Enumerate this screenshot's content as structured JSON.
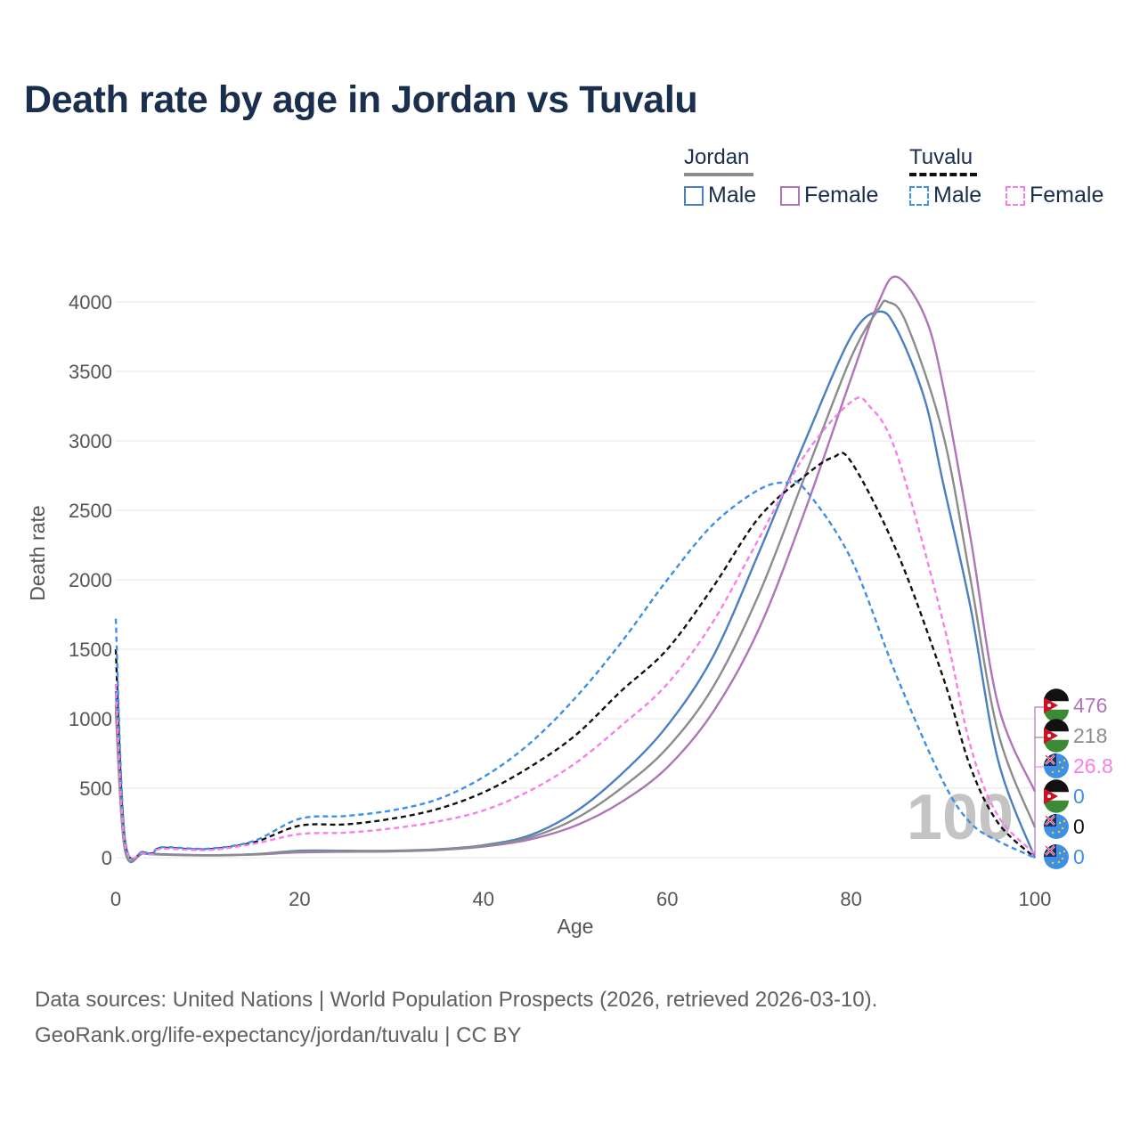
{
  "title": "Death rate by age in Jordan vs Tuvalu",
  "legend": {
    "groups": [
      {
        "name": "Jordan",
        "color": "#8c8c8c",
        "dash": false
      },
      {
        "name": "Tuvalu",
        "color": "#111111",
        "dash": true
      }
    ],
    "items": [
      {
        "label": "Male",
        "color": "#4a7fc1",
        "dash": false
      },
      {
        "label": "Female",
        "color": "#b074b8",
        "dash": false
      },
      {
        "label": "Male",
        "color": "#3d8fe8",
        "dash": true
      },
      {
        "label": "Female",
        "color": "#f77fe8",
        "dash": true
      }
    ]
  },
  "watermark": "100",
  "end_labels": [
    {
      "value": "476",
      "color": "#b074b8",
      "flag": "jordan-flag"
    },
    {
      "value": "218",
      "color": "#8c8c8c",
      "flag": "jordan-flag"
    },
    {
      "value": "26.8",
      "color": "#f77fe8",
      "flag": "tuvalu-flag"
    },
    {
      "value": "0",
      "color": "#3d8fe8",
      "flag": "jordan-flag"
    },
    {
      "value": "0",
      "color": "#111111",
      "flag": "tuvalu-flag"
    },
    {
      "value": "0",
      "color": "#3d8fe8",
      "flag": "tuvalu-flag"
    }
  ],
  "footer": {
    "line1": "Data sources: United Nations | World Population Prospects (2026, retrieved 2026-03-10).",
    "line2": "GeoRank.org/life-expectancy/jordan/tuvalu | CC BY"
  },
  "chart_data": {
    "type": "line",
    "title": "Death rate by age in Jordan vs Tuvalu",
    "xlabel": "Age",
    "ylabel": "Death rate",
    "xlim": [
      0,
      100
    ],
    "ylim": [
      0,
      4200
    ],
    "xticks": [
      0,
      20,
      40,
      60,
      80,
      100
    ],
    "yticks": [
      0,
      500,
      1000,
      1500,
      2000,
      2500,
      3000,
      3500,
      4000
    ],
    "grid": true,
    "series": [
      {
        "name": "Jordan Male",
        "color": "#4a7fc1",
        "dash": false,
        "points": [
          [
            0,
            1200
          ],
          [
            1,
            60
          ],
          [
            3,
            35
          ],
          [
            5,
            25
          ],
          [
            10,
            18
          ],
          [
            15,
            25
          ],
          [
            20,
            50
          ],
          [
            25,
            50
          ],
          [
            30,
            50
          ],
          [
            35,
            60
          ],
          [
            40,
            90
          ],
          [
            45,
            160
          ],
          [
            50,
            330
          ],
          [
            55,
            600
          ],
          [
            60,
            950
          ],
          [
            65,
            1450
          ],
          [
            70,
            2200
          ],
          [
            75,
            3000
          ],
          [
            80,
            3750
          ],
          [
            83,
            3930
          ],
          [
            85,
            3800
          ],
          [
            88,
            3300
          ],
          [
            90,
            2700
          ],
          [
            93,
            1800
          ],
          [
            96,
            700
          ],
          [
            100,
            0
          ]
        ]
      },
      {
        "name": "Jordan Female",
        "color": "#b074b8",
        "dash": false,
        "points": [
          [
            0,
            1050
          ],
          [
            1,
            55
          ],
          [
            3,
            30
          ],
          [
            5,
            22
          ],
          [
            10,
            16
          ],
          [
            15,
            22
          ],
          [
            20,
            38
          ],
          [
            25,
            42
          ],
          [
            30,
            45
          ],
          [
            35,
            55
          ],
          [
            40,
            80
          ],
          [
            45,
            130
          ],
          [
            50,
            230
          ],
          [
            55,
            400
          ],
          [
            60,
            650
          ],
          [
            65,
            1050
          ],
          [
            70,
            1650
          ],
          [
            75,
            2500
          ],
          [
            80,
            3450
          ],
          [
            83,
            4000
          ],
          [
            85,
            4180
          ],
          [
            88,
            3900
          ],
          [
            90,
            3400
          ],
          [
            93,
            2300
          ],
          [
            96,
            1100
          ],
          [
            100,
            476
          ]
        ]
      },
      {
        "name": "Jordan Total",
        "color": "#8c8c8c",
        "dash": false,
        "points": [
          [
            0,
            1100
          ],
          [
            1,
            58
          ],
          [
            3,
            32
          ],
          [
            5,
            23
          ],
          [
            10,
            17
          ],
          [
            15,
            24
          ],
          [
            20,
            44
          ],
          [
            25,
            46
          ],
          [
            30,
            48
          ],
          [
            35,
            57
          ],
          [
            40,
            85
          ],
          [
            45,
            145
          ],
          [
            50,
            280
          ],
          [
            55,
            500
          ],
          [
            60,
            790
          ],
          [
            65,
            1230
          ],
          [
            70,
            1900
          ],
          [
            75,
            2750
          ],
          [
            80,
            3600
          ],
          [
            83,
            3950
          ],
          [
            84,
            4000
          ],
          [
            86,
            3850
          ],
          [
            90,
            3050
          ],
          [
            93,
            2000
          ],
          [
            96,
            900
          ],
          [
            100,
            218
          ]
        ]
      },
      {
        "name": "Tuvalu Total",
        "color": "#111111",
        "dash": true,
        "points": [
          [
            0,
            1500
          ],
          [
            1,
            120
          ],
          [
            3,
            40
          ],
          [
            4,
            30
          ],
          [
            5,
            70
          ],
          [
            10,
            60
          ],
          [
            15,
            110
          ],
          [
            20,
            230
          ],
          [
            25,
            240
          ],
          [
            30,
            280
          ],
          [
            35,
            350
          ],
          [
            40,
            470
          ],
          [
            45,
            650
          ],
          [
            50,
            880
          ],
          [
            55,
            1200
          ],
          [
            60,
            1500
          ],
          [
            65,
            1950
          ],
          [
            70,
            2450
          ],
          [
            75,
            2750
          ],
          [
            78,
            2880
          ],
          [
            80,
            2850
          ],
          [
            85,
            2200
          ],
          [
            90,
            1300
          ],
          [
            93,
            650
          ],
          [
            96,
            250
          ],
          [
            100,
            0
          ]
        ]
      },
      {
        "name": "Tuvalu Male",
        "color": "#3d8fe8",
        "dash": true,
        "points": [
          [
            0,
            1720
          ],
          [
            1,
            140
          ],
          [
            3,
            45
          ],
          [
            4,
            30
          ],
          [
            5,
            75
          ],
          [
            10,
            65
          ],
          [
            15,
            120
          ],
          [
            20,
            280
          ],
          [
            25,
            300
          ],
          [
            30,
            340
          ],
          [
            35,
            420
          ],
          [
            40,
            580
          ],
          [
            45,
            820
          ],
          [
            50,
            1150
          ],
          [
            55,
            1550
          ],
          [
            60,
            2000
          ],
          [
            65,
            2400
          ],
          [
            70,
            2650
          ],
          [
            73,
            2700
          ],
          [
            75,
            2650
          ],
          [
            80,
            2150
          ],
          [
            85,
            1300
          ],
          [
            90,
            550
          ],
          [
            93,
            250
          ],
          [
            96,
            120
          ],
          [
            100,
            0
          ]
        ]
      },
      {
        "name": "Tuvalu Female",
        "color": "#f77fe8",
        "dash": true,
        "points": [
          [
            0,
            1250
          ],
          [
            1,
            100
          ],
          [
            3,
            35
          ],
          [
            4,
            25
          ],
          [
            5,
            65
          ],
          [
            10,
            55
          ],
          [
            15,
            100
          ],
          [
            20,
            170
          ],
          [
            25,
            180
          ],
          [
            30,
            210
          ],
          [
            35,
            260
          ],
          [
            40,
            340
          ],
          [
            45,
            480
          ],
          [
            50,
            680
          ],
          [
            55,
            950
          ],
          [
            60,
            1250
          ],
          [
            65,
            1700
          ],
          [
            70,
            2300
          ],
          [
            75,
            2900
          ],
          [
            80,
            3280
          ],
          [
            82,
            3250
          ],
          [
            85,
            2900
          ],
          [
            90,
            1700
          ],
          [
            93,
            800
          ],
          [
            96,
            300
          ],
          [
            100,
            26.8
          ]
        ]
      }
    ]
  }
}
